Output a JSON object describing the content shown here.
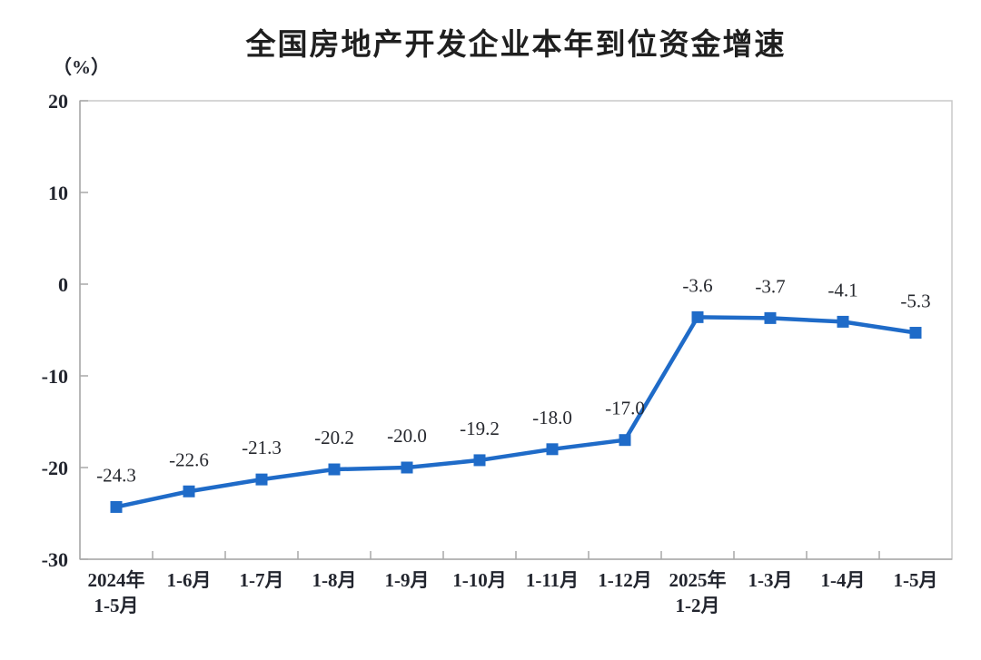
{
  "title": "全国房地产开发企业本年到位资金增速",
  "unit_label": "（%）",
  "colors": {
    "line": "#1f6bc8",
    "marker": "#1f6bc8",
    "data_label": "#26282e",
    "axis_text": "#22252e",
    "box_border": "#c9c9c9",
    "axis_line": "#a9a9a9",
    "background": "#ffffff"
  },
  "chart_data": {
    "type": "line",
    "title": "全国房地产开发企业本年到位资金增速",
    "ylabel": "（%）",
    "categories": [
      [
        "2024年",
        "1-5月"
      ],
      [
        "1-6月"
      ],
      [
        "1-7月"
      ],
      [
        "1-8月"
      ],
      [
        "1-9月"
      ],
      [
        "1-10月"
      ],
      [
        "1-11月"
      ],
      [
        "1-12月"
      ],
      [
        "2025年",
        "1-2月"
      ],
      [
        "1-3月"
      ],
      [
        "1-4月"
      ],
      [
        "1-5月"
      ]
    ],
    "values": [
      -24.3,
      -22.6,
      -21.3,
      -20.2,
      -20.0,
      -19.2,
      -18.0,
      -17.0,
      -3.6,
      -3.7,
      -4.1,
      -5.3
    ],
    "data_labels": [
      "-24.3",
      "-22.6",
      "-21.3",
      "-20.2",
      "-20.0",
      "-19.2",
      "-18.0",
      "-17.0",
      "-3.6",
      "-3.7",
      "-4.1",
      "-5.3"
    ],
    "y_ticks": [
      20,
      10,
      0,
      -10,
      -20,
      -30
    ],
    "ylim": [
      -30,
      20
    ],
    "grid": false,
    "legend": null,
    "marker": "square"
  }
}
